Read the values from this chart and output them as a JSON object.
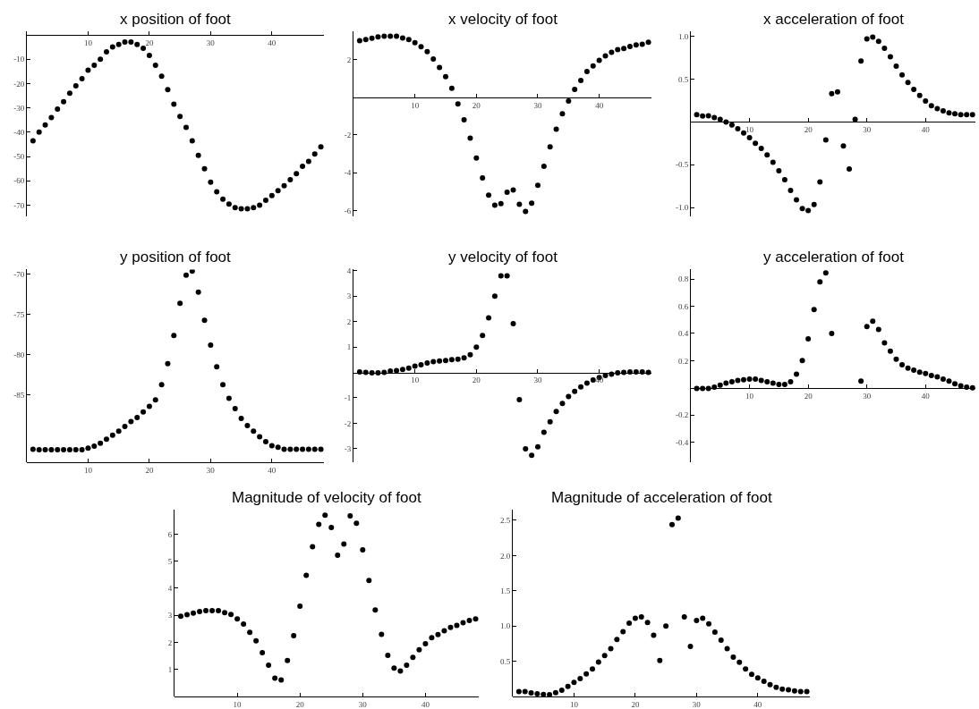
{
  "chart_data": [
    {
      "type": "scatter",
      "title": "x position of foot",
      "x": [
        1,
        2,
        3,
        4,
        5,
        6,
        7,
        8,
        9,
        10,
        11,
        12,
        13,
        14,
        15,
        16,
        17,
        18,
        19,
        20,
        21,
        22,
        23,
        24,
        25,
        26,
        27,
        28,
        29,
        30,
        31,
        32,
        33,
        34,
        35,
        36,
        37,
        38,
        39,
        40,
        41,
        42,
        43,
        44,
        45,
        46,
        47,
        48
      ],
      "series": [
        {
          "color": "#000000",
          "values": [
            -43.5,
            -40,
            -37,
            -34,
            -30.5,
            -27.5,
            -24,
            -21,
            -18,
            -14.5,
            -12.5,
            -10,
            -7,
            -5,
            -4,
            -3,
            -3,
            -4,
            -5.5,
            -8.5,
            -12.5,
            -17,
            -22.5,
            -28.5,
            -33.5,
            -38,
            -43.5,
            -49.5,
            -55,
            -60.5,
            -64.5,
            -67.5,
            -69.5,
            -71,
            -71.5,
            -71.5,
            -71,
            -70,
            -68,
            -66,
            -64,
            -62,
            -59.5,
            -57,
            -54,
            -52,
            -49,
            -46
          ]
        }
      ],
      "xlim": [
        0,
        48.5
      ],
      "ylim": [
        -74.5,
        1.5
      ],
      "xticks": [
        10,
        20,
        30,
        40
      ],
      "yticks": [
        -10,
        -20,
        -30,
        -40,
        -50,
        -60,
        -70
      ],
      "marker": "circle"
    },
    {
      "type": "scatter",
      "title": "x velocity of foot",
      "x": [
        1,
        2,
        3,
        4,
        5,
        6,
        7,
        8,
        9,
        10,
        11,
        12,
        13,
        14,
        15,
        16,
        17,
        18,
        19,
        20,
        21,
        22,
        23,
        24,
        25,
        26,
        27,
        28,
        29,
        30,
        31,
        32,
        33,
        34,
        35,
        36,
        37,
        38,
        39,
        40,
        41,
        42,
        43,
        44,
        45,
        46,
        47,
        48
      ],
      "series": [
        {
          "color": "#000000",
          "values": [
            3.0,
            3.05,
            3.12,
            3.2,
            3.23,
            3.23,
            3.23,
            3.14,
            3.05,
            2.89,
            2.67,
            2.42,
            2.03,
            1.58,
            1.09,
            0.47,
            -0.36,
            -1.2,
            -2.17,
            -3.22,
            -4.27,
            -5.19,
            -5.72,
            -5.63,
            -5.03,
            -4.91,
            -5.67,
            -6.05,
            -5.61,
            -4.66,
            -3.66,
            -2.63,
            -1.69,
            -0.88,
            -0.2,
            0.41,
            0.89,
            1.36,
            1.66,
            1.95,
            2.19,
            2.38,
            2.52,
            2.58,
            2.69,
            2.77,
            2.81,
            2.91
          ]
        }
      ],
      "xlim": [
        0,
        48.5
      ],
      "ylim": [
        -6.3,
        3.5
      ],
      "xticks": [
        10,
        20,
        30,
        40
      ],
      "yticks": [
        2,
        -2,
        -4,
        -6
      ],
      "marker": "circle"
    },
    {
      "type": "scatter",
      "title": "x acceleration of foot",
      "x": [
        1,
        2,
        3,
        4,
        5,
        6,
        7,
        8,
        9,
        10,
        11,
        12,
        13,
        14,
        15,
        16,
        17,
        18,
        19,
        20,
        21,
        22,
        23,
        24,
        25,
        26,
        27,
        28,
        29,
        30,
        31,
        32,
        33,
        34,
        35,
        36,
        37,
        38,
        39,
        40,
        41,
        42,
        43,
        44,
        45,
        46,
        47,
        48
      ],
      "series": [
        {
          "color": "#000000",
          "values": [
            0.084,
            0.07,
            0.073,
            0.05,
            0.03,
            0,
            -0.035,
            -0.08,
            -0.13,
            -0.185,
            -0.25,
            -0.31,
            -0.385,
            -0.47,
            -0.57,
            -0.675,
            -0.8,
            -0.91,
            -1.01,
            -1.035,
            -0.965,
            -0.7,
            -0.21,
            0.33,
            0.35,
            -0.28,
            -0.55,
            0.03,
            0.71,
            0.97,
            0.99,
            0.94,
            0.86,
            0.76,
            0.65,
            0.55,
            0.46,
            0.38,
            0.31,
            0.245,
            0.19,
            0.155,
            0.13,
            0.105,
            0.095,
            0.084,
            0.084,
            0.084
          ]
        }
      ],
      "xlim": [
        0,
        48.5
      ],
      "ylim": [
        -1.1,
        1.06
      ],
      "xticks": [
        10,
        20,
        30,
        40
      ],
      "yticks": [
        {
          "value": 1,
          "label": "1.0"
        },
        0.5,
        -0.5,
        {
          "value": -1,
          "label": "-1.0"
        }
      ],
      "marker": "circle"
    },
    {
      "type": "scatter",
      "title": "y position of foot",
      "x": [
        1,
        2,
        3,
        4,
        5,
        6,
        7,
        8,
        9,
        10,
        11,
        12,
        13,
        14,
        15,
        16,
        17,
        18,
        19,
        20,
        21,
        22,
        23,
        24,
        25,
        26,
        27,
        28,
        29,
        30,
        31,
        32,
        33,
        34,
        35,
        36,
        37,
        38,
        39,
        40,
        41,
        42,
        43,
        44,
        45,
        46,
        47,
        48
      ],
      "series": [
        {
          "color": "#000000",
          "values": [
            -91.75,
            -91.8,
            -91.8,
            -91.8,
            -91.8,
            -91.8,
            -91.8,
            -91.8,
            -91.8,
            -91.6,
            -91.35,
            -91.0,
            -90.5,
            -90.0,
            -89.5,
            -88.9,
            -88.3,
            -87.8,
            -87.1,
            -86.4,
            -85.6,
            -83.7,
            -81.1,
            -77.6,
            -73.6,
            -70.1,
            -69.6,
            -72.2,
            -75.7,
            -78.8,
            -81.5,
            -83.7,
            -85.4,
            -86.7,
            -87.9,
            -88.8,
            -89.5,
            -90.2,
            -90.8,
            -91.3,
            -91.5,
            -91.75,
            -91.75,
            -91.75,
            -91.75,
            -91.75,
            -91.75,
            -91.75
          ]
        }
      ],
      "xlim": [
        0,
        48.5
      ],
      "ylim": [
        -93.4,
        -69.4
      ],
      "xticks": [
        10,
        20,
        30,
        40
      ],
      "yticks": [
        -70,
        -75,
        -80,
        -85
      ],
      "marker": "circle"
    },
    {
      "type": "scatter",
      "title": "y velocity of foot",
      "x": [
        1,
        2,
        3,
        4,
        5,
        6,
        7,
        8,
        9,
        10,
        11,
        12,
        13,
        14,
        15,
        16,
        17,
        18,
        19,
        20,
        21,
        22,
        23,
        24,
        25,
        26,
        27,
        28,
        29,
        30,
        31,
        32,
        33,
        34,
        35,
        36,
        37,
        38,
        39,
        40,
        41,
        42,
        43,
        44,
        45,
        46,
        47,
        48
      ],
      "series": [
        {
          "color": "#000000",
          "values": [
            0.02,
            0,
            -0.02,
            -0.02,
            0,
            0.05,
            0.07,
            0.12,
            0.17,
            0.25,
            0.3,
            0.37,
            0.42,
            0.45,
            0.47,
            0.5,
            0.52,
            0.57,
            0.7,
            1.0,
            1.45,
            2.15,
            3.0,
            3.8,
            3.8,
            1.92,
            -1.07,
            -3.01,
            -3.26,
            -2.93,
            -2.36,
            -1.94,
            -1.54,
            -1.22,
            -0.95,
            -0.75,
            -0.57,
            -0.42,
            -0.3,
            -0.2,
            -0.12,
            -0.07,
            -0.02,
            0,
            0.02,
            0.02,
            0.02,
            0
          ]
        }
      ],
      "xlim": [
        0,
        48.5
      ],
      "ylim": [
        -3.55,
        4.05
      ],
      "xticks": [
        10,
        20,
        30,
        40
      ],
      "yticks": [
        4,
        3,
        2,
        1,
        -1,
        -2,
        -3
      ],
      "marker": "circle"
    },
    {
      "type": "scatter",
      "title": "y acceleration of foot",
      "x": [
        1,
        2,
        3,
        4,
        5,
        6,
        7,
        8,
        9,
        10,
        11,
        12,
        13,
        14,
        15,
        16,
        17,
        18,
        19,
        20,
        21,
        22,
        23,
        24,
        25,
        26,
        27,
        28,
        29,
        30,
        31,
        32,
        33,
        34,
        35,
        36,
        37,
        38,
        39,
        40,
        41,
        42,
        43,
        44,
        45,
        46,
        47,
        48
      ],
      "series": [
        {
          "color": "#000000",
          "values": [
            -0.005,
            -0.005,
            -0.005,
            0.005,
            0.02,
            0.035,
            0.045,
            0.055,
            0.06,
            0.065,
            0.065,
            0.055,
            0.045,
            0.035,
            0.025,
            0.025,
            0.045,
            0.1,
            0.2,
            0.36,
            0.575,
            0.78,
            0.845,
            0.4,
            null,
            null,
            null,
            null,
            0.05,
            0.45,
            0.49,
            0.43,
            0.33,
            0.27,
            0.21,
            0.17,
            0.145,
            0.13,
            0.115,
            0.105,
            0.09,
            0.08,
            0.065,
            0.05,
            0.03,
            0.015,
            0.005,
            0
          ]
        }
      ],
      "xlim": [
        0,
        48.5
      ],
      "ylim": [
        -0.55,
        0.87
      ],
      "xticks": [
        10,
        20,
        30,
        40
      ],
      "yticks": [
        0.8,
        0.6,
        0.4,
        0.2,
        -0.2,
        -0.4
      ],
      "marker": "circle"
    },
    {
      "type": "scatter",
      "title": "Magnitude of velocity of foot",
      "x": [
        1,
        2,
        3,
        4,
        5,
        6,
        7,
        8,
        9,
        10,
        11,
        12,
        13,
        14,
        15,
        16,
        17,
        18,
        19,
        20,
        21,
        22,
        23,
        24,
        25,
        26,
        27,
        28,
        29,
        30,
        31,
        32,
        33,
        34,
        35,
        36,
        37,
        38,
        39,
        40,
        41,
        42,
        43,
        44,
        45,
        46,
        47,
        48
      ],
      "series": [
        {
          "color": "#000000",
          "values": [
            2.97,
            3.02,
            3.08,
            3.14,
            3.17,
            3.17,
            3.17,
            3.1,
            3.03,
            2.87,
            2.68,
            2.37,
            2.06,
            1.62,
            1.16,
            0.68,
            0.61,
            1.33,
            2.25,
            3.34,
            4.48,
            5.53,
            6.36,
            6.7,
            6.24,
            5.22,
            5.63,
            6.67,
            6.4,
            5.42,
            4.29,
            3.2,
            2.3,
            1.52,
            1.05,
            0.94,
            1.16,
            1.45,
            1.73,
            1.95,
            2.17,
            2.29,
            2.43,
            2.55,
            2.63,
            2.73,
            2.81,
            2.87
          ]
        }
      ],
      "xlim": [
        0,
        48.5
      ],
      "ylim": [
        0,
        6.9
      ],
      "xticks": [
        10,
        20,
        30,
        40
      ],
      "yticks": [
        1,
        2,
        3,
        4,
        5,
        6
      ],
      "marker": "circle"
    },
    {
      "type": "scatter",
      "title": "Magnitude of acceleration of foot",
      "x": [
        1,
        2,
        3,
        4,
        5,
        6,
        7,
        8,
        9,
        10,
        11,
        12,
        13,
        14,
        15,
        16,
        17,
        18,
        19,
        20,
        21,
        22,
        23,
        24,
        25,
        26,
        27,
        28,
        29,
        30,
        31,
        32,
        33,
        34,
        35,
        36,
        37,
        38,
        39,
        40,
        41,
        42,
        43,
        44,
        45,
        46,
        47,
        48
      ],
      "series": [
        {
          "color": "#000000",
          "values": [
            0.07,
            0.07,
            0.05,
            0.04,
            0.03,
            0.025,
            0.055,
            0.09,
            0.145,
            0.2,
            0.255,
            0.32,
            0.39,
            0.49,
            0.58,
            0.68,
            0.81,
            0.92,
            1.04,
            1.11,
            1.13,
            1.05,
            0.87,
            0.51,
            1.0,
            2.44,
            2.53,
            1.13,
            0.71,
            1.08,
            1.11,
            1.03,
            0.915,
            0.8,
            0.68,
            0.56,
            0.485,
            0.39,
            0.315,
            0.265,
            0.215,
            0.17,
            0.13,
            0.105,
            0.095,
            0.08,
            0.07,
            0.07
          ]
        }
      ],
      "xlim": [
        0,
        48.5
      ],
      "ylim": [
        0,
        2.65
      ],
      "xticks": [
        10,
        20,
        30,
        40
      ],
      "yticks": [
        0.5,
        {
          "value": 1,
          "label": "1.0"
        },
        1.5,
        {
          "value": 2,
          "label": "2.0"
        },
        2.5
      ],
      "marker": "circle"
    }
  ]
}
